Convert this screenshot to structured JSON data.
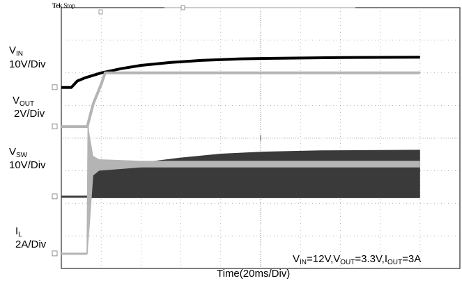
{
  "header": {
    "brand": "Tek",
    "status": "Stop"
  },
  "chart_data": {
    "type": "line",
    "title": "",
    "xlabel": "Time(20ms/Div)",
    "time_per_div_ms": 20,
    "x_divisions": 10,
    "y_divisions": 8,
    "grid": true,
    "conditions": {
      "vin_sub": "IN",
      "vin_value": "=12V,",
      "vout_sub": "OUT",
      "vout_value": "=3.3V,",
      "iout_sub": "OUT",
      "iout_value": "=3A"
    },
    "series": [
      {
        "name": "VIN",
        "label_main": "V",
        "label_sub": "IN",
        "scale": "10V/Div",
        "color": "#000000",
        "unit": "V",
        "baseline_div": 5.55,
        "points": [
          [
            0,
            0
          ],
          [
            5,
            0
          ],
          [
            8,
            0.2
          ],
          [
            12,
            0.3
          ],
          [
            20,
            0.45
          ],
          [
            30,
            0.58
          ],
          [
            40,
            0.68
          ],
          [
            55,
            0.77
          ],
          [
            70,
            0.83
          ],
          [
            90,
            0.88
          ],
          [
            110,
            0.9
          ],
          [
            140,
            0.92
          ],
          [
            180,
            0.93
          ]
        ]
      },
      {
        "name": "VOUT",
        "label_main": "V",
        "label_sub": "OUT",
        "scale": "2V/Div",
        "color": "#b4b4b4",
        "unit": "V",
        "baseline_div": 4.35,
        "points": [
          [
            0,
            0
          ],
          [
            13,
            0
          ],
          [
            16,
            0.7
          ],
          [
            20,
            1.3
          ],
          [
            22,
            1.65
          ],
          [
            180,
            1.65
          ]
        ]
      },
      {
        "name": "VSW",
        "label_main": "V",
        "label_sub": "SW",
        "scale": "10V/Div",
        "color": "#3a3a3a",
        "unit": "V",
        "baseline_div": 2.2,
        "envelope_points": [
          [
            0,
            0
          ],
          [
            13,
            0
          ],
          [
            13,
            0.6
          ],
          [
            20,
            0.85
          ],
          [
            40,
            1.05
          ],
          [
            60,
            1.2
          ],
          [
            80,
            1.32
          ],
          [
            100,
            1.38
          ],
          [
            130,
            1.42
          ],
          [
            180,
            1.44
          ]
        ]
      },
      {
        "name": "IL",
        "label_main": "I",
        "label_sub": "L",
        "scale": "2A/Div",
        "color": "#b4b4b4",
        "unit": "A",
        "baseline_div": 0.45,
        "envelope_points": [
          [
            0,
            0,
            0
          ],
          [
            13,
            0,
            0
          ],
          [
            13.5,
            3.9,
            0.2
          ],
          [
            16,
            3.0,
            2.4
          ],
          [
            19,
            2.9,
            2.55
          ],
          [
            40,
            2.85,
            2.65
          ],
          [
            180,
            2.85,
            2.65
          ]
        ]
      }
    ]
  }
}
